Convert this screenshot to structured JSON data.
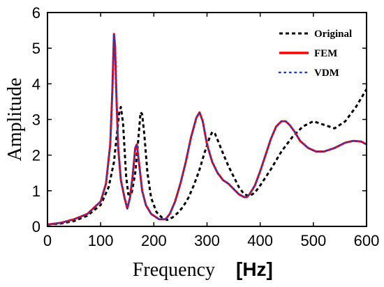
{
  "chart_data": {
    "type": "line",
    "title": "",
    "xlabel": "Frequency",
    "x_unit": "[Hz]",
    "ylabel": "Amplitude",
    "xlim": [
      0,
      600
    ],
    "ylim": [
      0,
      6
    ],
    "xticks": [
      0,
      100,
      200,
      300,
      400,
      500,
      600
    ],
    "yticks": [
      0,
      1,
      2,
      3,
      4,
      5,
      6
    ],
    "grid": false,
    "legend_position": "top-right",
    "series": [
      {
        "name": "Original",
        "style": "dashed",
        "color": "#000000",
        "x": [
          0,
          25,
          50,
          75,
          100,
          115,
          125,
          130,
          135,
          138,
          142,
          148,
          152,
          158,
          165,
          170,
          175,
          178,
          182,
          188,
          195,
          205,
          215,
          225,
          235,
          245,
          255,
          265,
          275,
          285,
          295,
          305,
          310,
          315,
          322,
          330,
          340,
          350,
          360,
          370,
          380,
          390,
          400,
          420,
          440,
          460,
          480,
          500,
          520,
          540,
          560,
          580,
          600
        ],
        "y": [
          0.05,
          0.08,
          0.15,
          0.3,
          0.6,
          1.1,
          1.8,
          2.5,
          3.2,
          3.35,
          2.9,
          1.4,
          0.9,
          0.9,
          1.5,
          2.3,
          3.2,
          3.15,
          2.6,
          1.5,
          0.8,
          0.4,
          0.25,
          0.18,
          0.25,
          0.38,
          0.55,
          0.8,
          1.15,
          1.55,
          2.05,
          2.5,
          2.65,
          2.6,
          2.35,
          2.05,
          1.7,
          1.4,
          1.1,
          0.9,
          0.85,
          0.95,
          1.15,
          1.6,
          2.1,
          2.5,
          2.8,
          2.95,
          2.85,
          2.75,
          2.95,
          3.35,
          3.85
        ]
      },
      {
        "name": "FEM",
        "style": "solid",
        "color": "#ff0000",
        "x": [
          0,
          25,
          50,
          75,
          100,
          110,
          118,
          122,
          125,
          127,
          130,
          133,
          138,
          145,
          150,
          155,
          160,
          165,
          168,
          172,
          178,
          185,
          195,
          210,
          222,
          230,
          240,
          250,
          260,
          270,
          280,
          286,
          292,
          300,
          310,
          320,
          330,
          340,
          350,
          360,
          370,
          375,
          380,
          390,
          400,
          410,
          420,
          430,
          440,
          448,
          455,
          465,
          475,
          490,
          505,
          520,
          540,
          560,
          575,
          590,
          600
        ],
        "y": [
          0.05,
          0.1,
          0.2,
          0.35,
          0.7,
          1.2,
          2.3,
          3.8,
          5.4,
          5.1,
          3.5,
          2.2,
          1.3,
          0.8,
          0.5,
          0.8,
          1.4,
          2.2,
          2.3,
          1.8,
          1.0,
          0.6,
          0.35,
          0.2,
          0.2,
          0.35,
          0.7,
          1.2,
          1.8,
          2.5,
          3.05,
          3.2,
          2.95,
          2.3,
          1.8,
          1.5,
          1.3,
          1.2,
          1.05,
          0.9,
          0.82,
          0.82,
          0.9,
          1.15,
          1.55,
          2.0,
          2.45,
          2.8,
          2.95,
          2.95,
          2.85,
          2.65,
          2.4,
          2.2,
          2.1,
          2.1,
          2.2,
          2.35,
          2.4,
          2.38,
          2.3
        ]
      },
      {
        "name": "VDM",
        "style": "dotted",
        "color": "#1a3ccf",
        "x": [
          0,
          25,
          50,
          75,
          100,
          110,
          118,
          122,
          125,
          127,
          130,
          133,
          138,
          145,
          150,
          155,
          160,
          165,
          168,
          172,
          178,
          185,
          195,
          210,
          222,
          230,
          240,
          250,
          260,
          270,
          280,
          286,
          292,
          300,
          310,
          320,
          330,
          340,
          350,
          360,
          370,
          375,
          380,
          390,
          400,
          410,
          420,
          430,
          440,
          448,
          455,
          465,
          475,
          490,
          505,
          520,
          540,
          560,
          575,
          590,
          600
        ],
        "y": [
          0.05,
          0.1,
          0.2,
          0.35,
          0.7,
          1.2,
          2.3,
          3.8,
          5.4,
          5.1,
          3.5,
          2.2,
          1.3,
          0.8,
          0.5,
          0.8,
          1.4,
          2.2,
          2.3,
          1.8,
          1.0,
          0.6,
          0.35,
          0.2,
          0.2,
          0.35,
          0.7,
          1.2,
          1.8,
          2.5,
          3.05,
          3.2,
          2.95,
          2.3,
          1.8,
          1.5,
          1.3,
          1.2,
          1.05,
          0.9,
          0.82,
          0.82,
          0.9,
          1.15,
          1.55,
          2.0,
          2.45,
          2.8,
          2.95,
          2.95,
          2.85,
          2.65,
          2.4,
          2.2,
          2.1,
          2.1,
          2.2,
          2.35,
          2.4,
          2.38,
          2.3
        ]
      }
    ]
  }
}
